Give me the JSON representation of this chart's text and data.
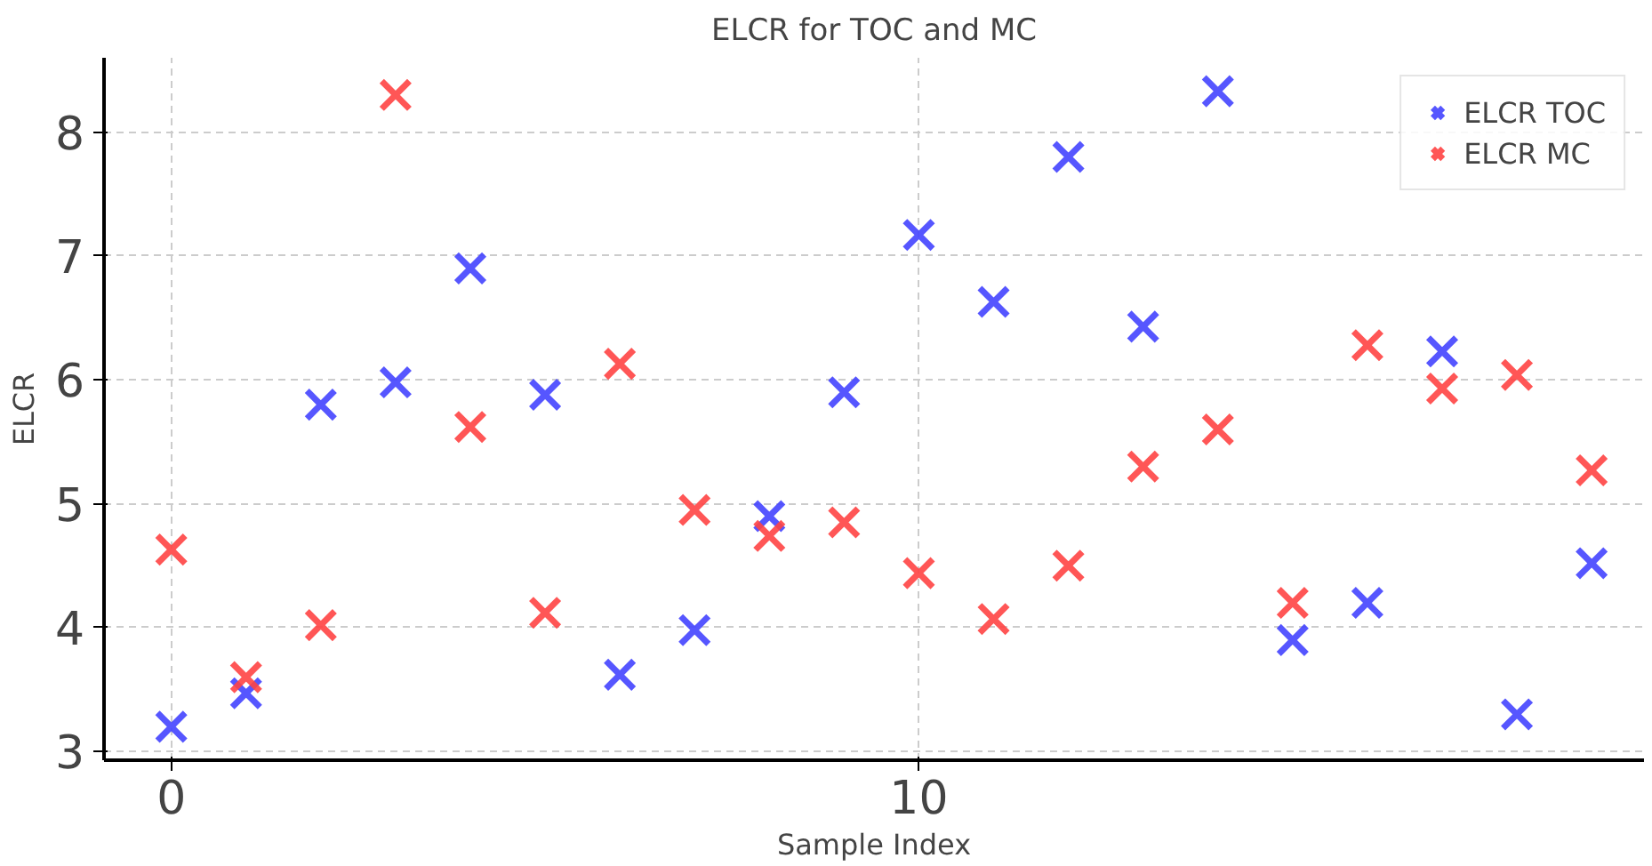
{
  "chart_data": {
    "type": "scatter",
    "title": "ELCR for TOC and MC",
    "xlabel": "Sample Index",
    "ylabel": "ELCR",
    "x": [
      0,
      1,
      2,
      3,
      4,
      5,
      6,
      7,
      8,
      9,
      10,
      11,
      12,
      13,
      14,
      15,
      16,
      17,
      18,
      19
    ],
    "series": [
      {
        "name": "ELCR TOC",
        "color": "#4444ff",
        "values": [
          3.2,
          3.47,
          5.8,
          5.98,
          6.9,
          5.88,
          3.62,
          3.98,
          4.9,
          5.9,
          7.17,
          6.63,
          7.8,
          6.43,
          8.33,
          3.9,
          4.2,
          6.23,
          3.3,
          4.52
        ]
      },
      {
        "name": "ELCR MC",
        "color": "#ff4444",
        "values": [
          4.63,
          3.6,
          4.02,
          8.3,
          5.62,
          4.12,
          6.13,
          4.95,
          4.74,
          4.85,
          4.44,
          4.07,
          4.5,
          5.3,
          5.6,
          4.2,
          6.28,
          5.93,
          6.04,
          5.27
        ]
      }
    ],
    "xlim": [
      -0.9,
      19.7
    ],
    "ylim": [
      2.93,
      8.6
    ],
    "xticks": [
      0,
      10
    ],
    "yticks": [
      3,
      4,
      5,
      6,
      7,
      8
    ],
    "grid": true,
    "legend": "top right",
    "marker": "cross"
  }
}
